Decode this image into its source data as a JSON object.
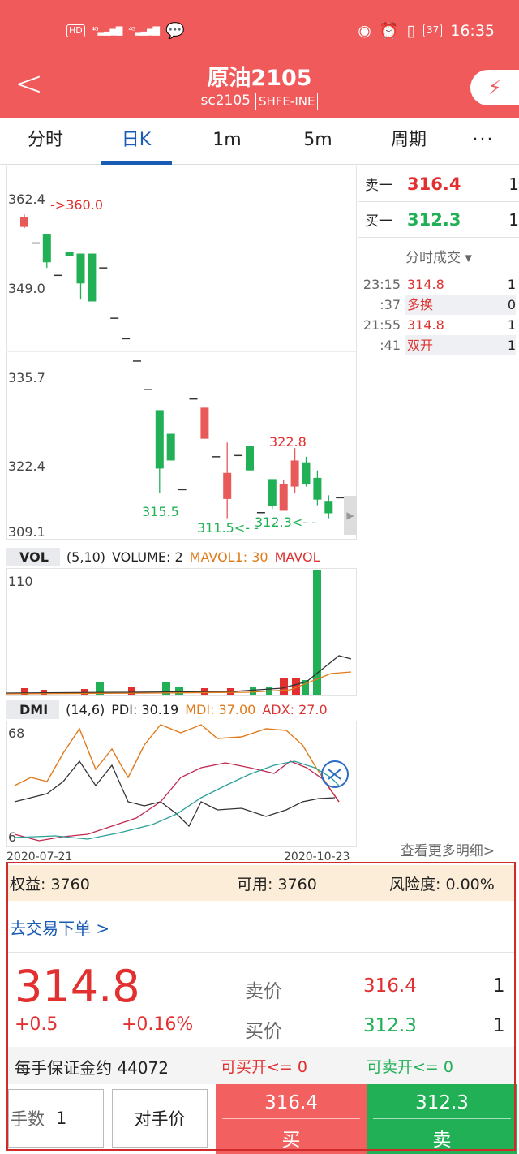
{
  "status_bar": {
    "left": "HD 4G 4G",
    "time": "16:35",
    "battery": "37"
  },
  "header": {
    "title": "原油2105",
    "code": "sc2105",
    "exchange": "SHFE-INE"
  },
  "tabs": [
    {
      "label": "分时",
      "active": false
    },
    {
      "label": "日K",
      "active": true
    },
    {
      "label": "1m",
      "active": false
    },
    {
      "label": "5m",
      "active": false
    },
    {
      "label": "周期",
      "active": false
    },
    {
      "label": "···",
      "active": false
    }
  ],
  "kline": {
    "y_ticks": [
      "362.4",
      "349.0",
      "335.7",
      "322.4",
      "309.1"
    ],
    "annotations": [
      "360.0",
      "315.5",
      "311.5",
      "322.8",
      "312.3"
    ],
    "date_start": "2020-07-21",
    "date_end": "2020-10-23"
  },
  "order_book": {
    "sell": {
      "label": "卖一",
      "price": "316.4",
      "qty": "1"
    },
    "buy": {
      "label": "买一",
      "price": "312.3",
      "qty": "1"
    },
    "trades_title": "分时成交",
    "trades": [
      {
        "time": "23:15",
        "price": "314.8",
        "qty": "1"
      },
      {
        "time": ":37",
        "price": "多换",
        "qty": "0"
      },
      {
        "time": "21:55",
        "price": "314.8",
        "qty": "1"
      },
      {
        "time": ":41",
        "price": "双开",
        "qty": "1"
      }
    ],
    "more": "查看更多明细>"
  },
  "vol_panel": {
    "name": "VOL",
    "params": "(5,10)",
    "volume": "VOLUME: 2",
    "mavol1": "MAVOL1: 30",
    "mavol2": "MAVOL",
    "y_max": "110"
  },
  "dmi_panel": {
    "name": "DMI",
    "params": "(14,6)",
    "pdi": "PDI: 30.19",
    "mdi": "MDI: 37.00",
    "adx": "ADX: 27.0",
    "y_max": "68",
    "y_min": "6"
  },
  "account": {
    "equity_label": "权益:",
    "equity": "3760",
    "available_label": "可用:",
    "available": "3760",
    "risk_label": "风险度:",
    "risk": "0.00%"
  },
  "trade": {
    "link": "去交易下单 >",
    "last_price": "314.8",
    "change": "+0.5",
    "change_pct": "+0.16%",
    "ask_label": "卖价",
    "ask": "316.4",
    "ask_qty": "1",
    "bid_label": "买价",
    "bid": "312.3",
    "bid_qty": "1",
    "margin": "每手保证金约 44072",
    "can_buy": "可买开<= 0",
    "can_sell": "可卖开<= 0",
    "lots_label": "手数",
    "lots": "1",
    "counter_price": "对手价",
    "buy_price": "316.4",
    "buy_label": "买",
    "sell_price": "312.3",
    "sell_label": "卖"
  },
  "colors": {
    "brand": "#f05a5a",
    "up": "#e23030",
    "down": "#21b056",
    "link": "#1a5bb5"
  },
  "chart_data": {
    "type": "candlestick",
    "x_range": [
      "2020-07-21",
      "2020-10-23"
    ],
    "ylim": [
      309.1,
      362.4
    ],
    "y_ticks": [
      362.4,
      349.0,
      335.7,
      322.4,
      309.1
    ],
    "candles": [
      {
        "o": 358.4,
        "c": 360.0,
        "h": 360.4,
        "l": 358.2,
        "dir": "up"
      },
      {
        "o": 355.8,
        "c": 355.8,
        "h": 355.8,
        "l": 355.8,
        "dir": "flat"
      },
      {
        "o": 357.3,
        "c": 352.7,
        "h": 357.3,
        "l": 351.8,
        "dir": "down"
      },
      {
        "o": 350.6,
        "c": 350.6,
        "h": 350.6,
        "l": 350.6,
        "dir": "flat"
      },
      {
        "o": 354.4,
        "c": 353.7,
        "h": 354.4,
        "l": 353.7,
        "dir": "down"
      },
      {
        "o": 354.1,
        "c": 349.3,
        "h": 354.1,
        "l": 346.7,
        "dir": "down"
      },
      {
        "o": 354.1,
        "c": 346.4,
        "h": 354.1,
        "l": 346.4,
        "dir": "down"
      },
      {
        "o": 351.8,
        "c": 351.8,
        "h": 351.8,
        "l": 351.8,
        "dir": "flat"
      },
      {
        "o": 343.7,
        "c": 343.7,
        "h": 343.7,
        "l": 343.7,
        "dir": "flat"
      },
      {
        "o": 340.4,
        "c": 340.4,
        "h": 340.4,
        "l": 340.4,
        "dir": "flat"
      },
      {
        "o": 336.8,
        "c": 336.8,
        "h": 336.8,
        "l": 336.8,
        "dir": "flat"
      },
      {
        "o": 332.2,
        "c": 332.2,
        "h": 332.2,
        "l": 332.2,
        "dir": "flat"
      },
      {
        "o": 328.9,
        "c": 319.5,
        "h": 328.9,
        "l": 315.5,
        "dir": "down"
      },
      {
        "o": 325.1,
        "c": 320.8,
        "h": 325.1,
        "l": 320.8,
        "dir": "down"
      },
      {
        "o": 316.1,
        "c": 316.1,
        "h": 316.1,
        "l": 316.1,
        "dir": "flat"
      },
      {
        "o": 330.7,
        "c": 330.7,
        "h": 330.7,
        "l": 330.7,
        "dir": "flat"
      },
      {
        "o": 324.3,
        "c": 329.3,
        "h": 329.3,
        "l": 324.3,
        "dir": "up"
      },
      {
        "o": 321.4,
        "c": 321.4,
        "h": 321.4,
        "l": 321.4,
        "dir": "flat"
      },
      {
        "o": 314.6,
        "c": 318.8,
        "h": 323.7,
        "l": 311.5,
        "dir": "up"
      },
      {
        "o": 321.6,
        "c": 321.6,
        "h": 321.6,
        "l": 321.6,
        "dir": "flat"
      },
      {
        "o": 323.2,
        "c": 319.2,
        "h": 323.2,
        "l": 319.2,
        "dir": "down"
      },
      {
        "o": 312.4,
        "c": 312.4,
        "h": 312.4,
        "l": 312.4,
        "dir": "flat"
      },
      {
        "o": 317.8,
        "c": 313.5,
        "h": 317.8,
        "l": 313.0,
        "dir": "down"
      },
      {
        "o": 312.7,
        "c": 317.0,
        "h": 317.6,
        "l": 312.7,
        "dir": "up"
      },
      {
        "o": 316.6,
        "c": 320.8,
        "h": 322.8,
        "l": 315.6,
        "dir": "up"
      },
      {
        "o": 320.5,
        "c": 317.0,
        "h": 321.4,
        "l": 316.6,
        "dir": "down"
      },
      {
        "o": 318.0,
        "c": 314.5,
        "h": 319.2,
        "l": 313.6,
        "dir": "down"
      },
      {
        "o": 314.3,
        "c": 312.3,
        "h": 315.2,
        "l": 311.5,
        "dir": "down"
      },
      {
        "o": 314.8,
        "c": 314.8,
        "h": 314.8,
        "l": 314.8,
        "dir": "flat"
      }
    ]
  }
}
